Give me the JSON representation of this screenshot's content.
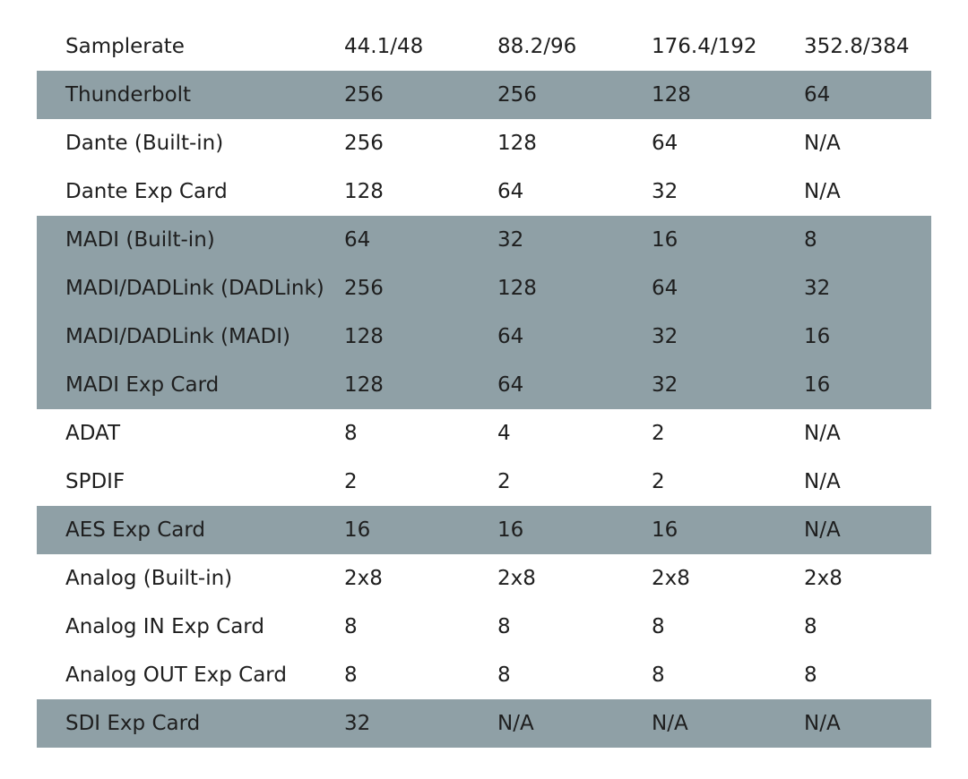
{
  "table": {
    "header": [
      "Samplerate",
      "44.1/48",
      "88.2/96",
      "176.4/192",
      "352.8/384"
    ],
    "rows": [
      {
        "cells": [
          "Thunderbolt",
          "256",
          "256",
          "128",
          "64"
        ],
        "shaded": true
      },
      {
        "cells": [
          "Dante (Built-in)",
          "256",
          "128",
          "64",
          "N/A"
        ],
        "shaded": false
      },
      {
        "cells": [
          "Dante Exp Card",
          "128",
          "64",
          "32",
          "N/A"
        ],
        "shaded": false
      },
      {
        "cells": [
          "MADI (Built-in)",
          "64",
          "32",
          "16",
          "8"
        ],
        "shaded": true
      },
      {
        "cells": [
          "MADI/DADLink (DADLink)",
          "256",
          "128",
          "64",
          "32"
        ],
        "shaded": true
      },
      {
        "cells": [
          "MADI/DADLink (MADI)",
          "128",
          "64",
          "32",
          "16"
        ],
        "shaded": true
      },
      {
        "cells": [
          "MADI Exp Card",
          "128",
          "64",
          "32",
          "16"
        ],
        "shaded": true
      },
      {
        "cells": [
          "ADAT",
          "8",
          "4",
          "2",
          "N/A"
        ],
        "shaded": false
      },
      {
        "cells": [
          "SPDIF",
          "2",
          "2",
          "2",
          "N/A"
        ],
        "shaded": false
      },
      {
        "cells": [
          "AES Exp Card",
          "16",
          "16",
          "16",
          "N/A"
        ],
        "shaded": true
      },
      {
        "cells": [
          "Analog (Built-in)",
          "2x8",
          "2x8",
          "2x8",
          "2x8"
        ],
        "shaded": false
      },
      {
        "cells": [
          "Analog IN Exp Card",
          "8",
          "8",
          "8",
          "8"
        ],
        "shaded": false
      },
      {
        "cells": [
          "Analog OUT Exp Card",
          "8",
          "8",
          "8",
          "8"
        ],
        "shaded": false
      },
      {
        "cells": [
          "SDI Exp Card",
          "32",
          "N/A",
          "N/A",
          "N/A"
        ],
        "shaded": true
      }
    ]
  },
  "colors": {
    "shaded_row": "#8fa0a6",
    "text": "#1e1e1e",
    "background": "#ffffff"
  }
}
